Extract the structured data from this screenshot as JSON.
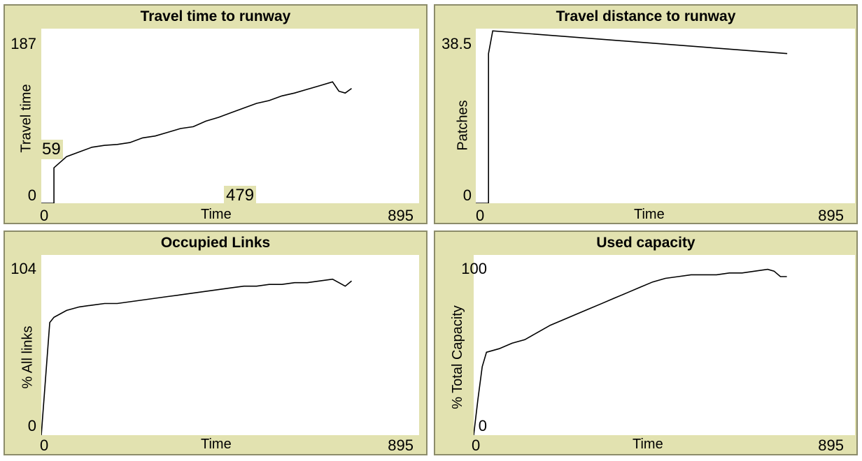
{
  "chart_data": [
    {
      "type": "line",
      "title": "Travel time to runway",
      "xlabel": "Time",
      "ylabel": "Travel time",
      "xlim": [
        0,
        895
      ],
      "ylim": [
        0,
        187
      ],
      "x_tick_labels": [
        "0",
        "895"
      ],
      "y_tick_labels": [
        "0",
        "187"
      ],
      "hover_readout": {
        "x": "479",
        "y": "59"
      },
      "series": [
        {
          "values": [
            [
              0,
              0
            ],
            [
              30,
              0
            ],
            [
              30,
              38
            ],
            [
              60,
              50
            ],
            [
              90,
              55
            ],
            [
              120,
              60
            ],
            [
              150,
              62
            ],
            [
              180,
              63
            ],
            [
              210,
              65
            ],
            [
              240,
              70
            ],
            [
              270,
              72
            ],
            [
              300,
              76
            ],
            [
              330,
              80
            ],
            [
              360,
              82
            ],
            [
              390,
              88
            ],
            [
              420,
              92
            ],
            [
              450,
              97
            ],
            [
              480,
              102
            ],
            [
              510,
              107
            ],
            [
              540,
              110
            ],
            [
              570,
              115
            ],
            [
              600,
              118
            ],
            [
              630,
              122
            ],
            [
              660,
              126
            ],
            [
              690,
              130
            ],
            [
              705,
              120
            ],
            [
              720,
              118
            ],
            [
              735,
              123
            ]
          ]
        }
      ]
    },
    {
      "type": "line",
      "title": "Travel distance to runway",
      "xlabel": "Time",
      "ylabel": "Patches",
      "xlim": [
        0,
        895
      ],
      "ylim": [
        0,
        38.5
      ],
      "x_tick_labels": [
        "0",
        "895"
      ],
      "y_tick_labels": [
        "0",
        "38.5"
      ],
      "series": [
        {
          "values": [
            [
              0,
              0
            ],
            [
              30,
              0
            ],
            [
              30,
              33
            ],
            [
              40,
              38
            ],
            [
              735,
              33
            ]
          ]
        }
      ]
    },
    {
      "type": "line",
      "title": "Occupied Links",
      "xlabel": "Time",
      "ylabel": "% All links",
      "xlim": [
        0,
        895
      ],
      "ylim": [
        0,
        104
      ],
      "x_tick_labels": [
        "0",
        "895"
      ],
      "y_tick_labels": [
        "0",
        "104"
      ],
      "series": [
        {
          "values": [
            [
              0,
              0
            ],
            [
              20,
              65
            ],
            [
              30,
              68
            ],
            [
              60,
              72
            ],
            [
              90,
              74
            ],
            [
              120,
              75
            ],
            [
              150,
              76
            ],
            [
              180,
              76
            ],
            [
              210,
              77
            ],
            [
              240,
              78
            ],
            [
              270,
              79
            ],
            [
              300,
              80
            ],
            [
              330,
              81
            ],
            [
              360,
              82
            ],
            [
              390,
              83
            ],
            [
              420,
              84
            ],
            [
              450,
              85
            ],
            [
              480,
              86
            ],
            [
              510,
              86
            ],
            [
              540,
              87
            ],
            [
              570,
              87
            ],
            [
              600,
              88
            ],
            [
              630,
              88
            ],
            [
              660,
              89
            ],
            [
              690,
              90
            ],
            [
              705,
              88
            ],
            [
              720,
              86
            ],
            [
              735,
              89
            ]
          ]
        }
      ]
    },
    {
      "type": "line",
      "title": "Used capacity",
      "xlabel": "Time",
      "ylabel": "% Total Capacity",
      "xlim": [
        0,
        895
      ],
      "ylim": [
        0,
        100
      ],
      "x_tick_labels": [
        "0",
        "895"
      ],
      "y_tick_labels": [
        "0",
        "100"
      ],
      "series": [
        {
          "values": [
            [
              0,
              0
            ],
            [
              10,
              20
            ],
            [
              20,
              38
            ],
            [
              30,
              46
            ],
            [
              60,
              48
            ],
            [
              90,
              51
            ],
            [
              120,
              53
            ],
            [
              150,
              57
            ],
            [
              180,
              61
            ],
            [
              210,
              64
            ],
            [
              240,
              67
            ],
            [
              270,
              70
            ],
            [
              300,
              73
            ],
            [
              330,
              76
            ],
            [
              360,
              79
            ],
            [
              390,
              82
            ],
            [
              420,
              85
            ],
            [
              450,
              87
            ],
            [
              480,
              88
            ],
            [
              510,
              89
            ],
            [
              540,
              89
            ],
            [
              570,
              89
            ],
            [
              600,
              90
            ],
            [
              630,
              90
            ],
            [
              660,
              91
            ],
            [
              690,
              92
            ],
            [
              705,
              91
            ],
            [
              720,
              88
            ],
            [
              735,
              88
            ]
          ]
        }
      ]
    }
  ]
}
